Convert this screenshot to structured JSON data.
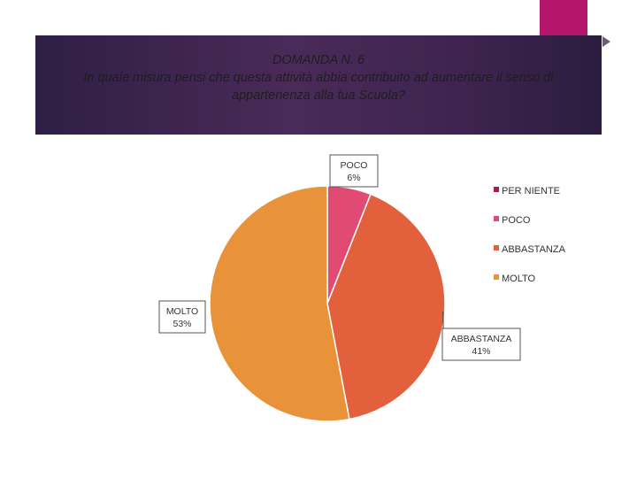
{
  "title": {
    "line1": "DOMANDA N. 6",
    "line2": "In quale misura pensi che questa attività abbia contribuito ad aumentare il senso di",
    "line3": "appartenenza alla tua Scuola?"
  },
  "colors": {
    "accent": "#b5166b",
    "band": "#3c2450"
  },
  "chart_data": {
    "type": "pie",
    "categories": [
      "PER NIENTE",
      "POCO",
      "ABBASTANZA",
      "MOLTO"
    ],
    "values": [
      0,
      6,
      41,
      53
    ],
    "colors": [
      "#b0184f",
      "#e14a72",
      "#e2603c",
      "#e8933a"
    ],
    "data_labels": [
      {
        "category": "POCO",
        "value": "6%"
      },
      {
        "category": "ABBASTANZA",
        "value": "41%"
      },
      {
        "category": "MOLTO",
        "value": "53%"
      }
    ],
    "legend": [
      "PER NIENTE",
      "POCO",
      "ABBASTANZA",
      "MOLTO"
    ],
    "legend_position": "right",
    "title": ""
  }
}
